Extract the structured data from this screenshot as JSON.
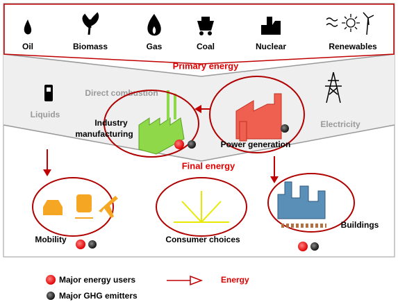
{
  "sources": [
    "Oil",
    "Biomass",
    "Gas",
    "Coal",
    "Nuclear",
    "Renewables"
  ],
  "primary_label": "Primary energy",
  "direct_combustion": "Direct combustion",
  "liquids": "Liquids",
  "electricity": "Electricity",
  "industry": {
    "lines": [
      "Industry",
      "manufacturing"
    ]
  },
  "power_generation": "Power generation",
  "final_label": "Final energy",
  "mobility": "Mobility",
  "consumer_choices": "Consumer choices",
  "buildings": "Buildings",
  "legend": {
    "users": "Major energy users",
    "energy": "Energy",
    "emitters": "Major GHG emitters"
  }
}
